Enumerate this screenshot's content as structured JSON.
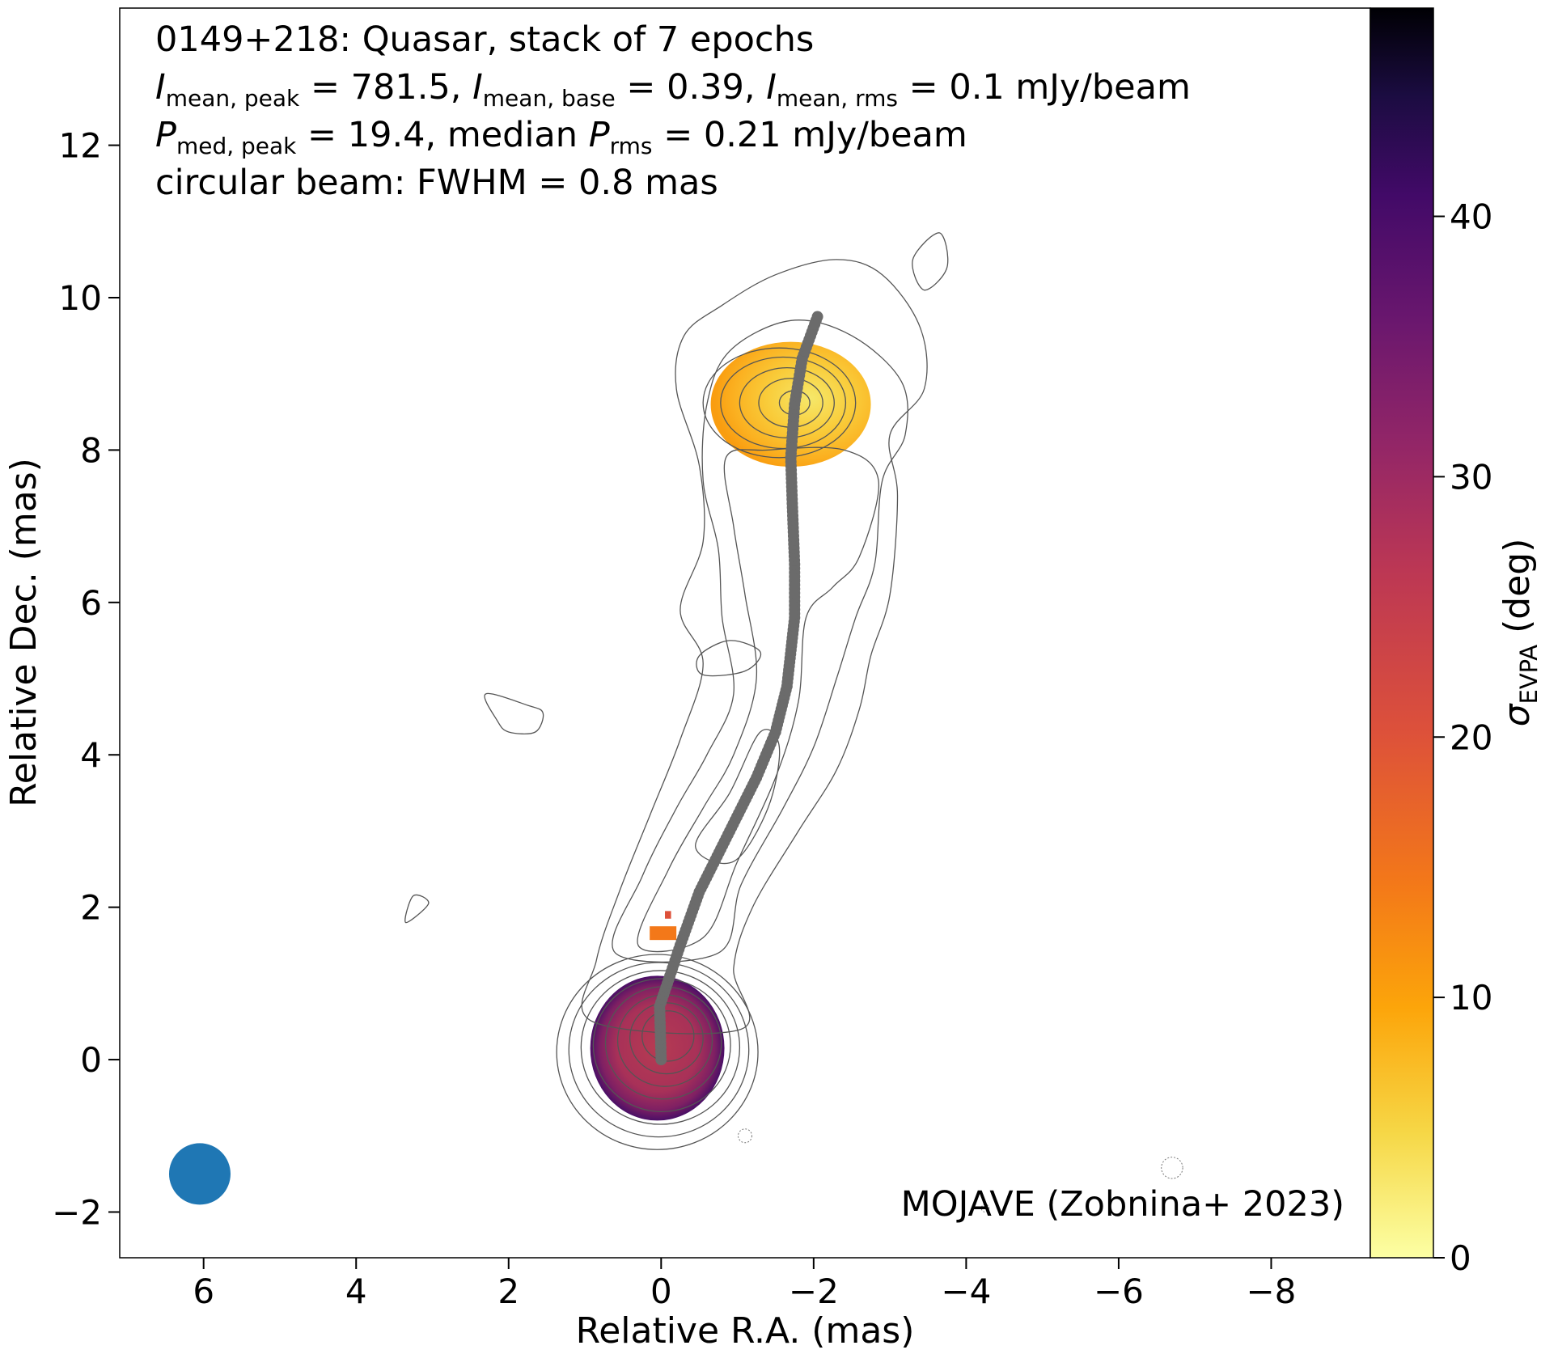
{
  "chart_data": {
    "type": "image",
    "xlabel": "Relative R.A. (mas)",
    "ylabel": "Relative Dec. (mas)",
    "xlim": [
      7.1,
      -9.3
    ],
    "ylim": [
      -2.6,
      13.8
    ],
    "x_ticks": [
      6,
      4,
      2,
      0,
      -2,
      -4,
      -6,
      -8
    ],
    "y_ticks": [
      -2,
      0,
      2,
      4,
      6,
      8,
      10,
      12
    ],
    "x_tick_labels": [
      "6",
      "4",
      "2",
      "0",
      "−2",
      "−4",
      "−6",
      "−8"
    ],
    "y_tick_labels": [
      "−2",
      "0",
      "2",
      "4",
      "6",
      "8",
      "10",
      "12"
    ],
    "title_lines": {
      "line1": "0149+218: Quasar, stack of 7 epochs",
      "line2": {
        "i_sym": "I",
        "sub_peak": "mean, peak",
        "val_peak": " = 781.5, ",
        "sub_base": "mean, base",
        "val_base": " = 0.39, ",
        "sub_rms": "mean, rms",
        "val_rms": " = 0.1 mJy/beam"
      },
      "line3": {
        "p_sym": "P",
        "sub_med": "med, peak",
        "mid": " = 19.4, median ",
        "sub_rms": "rms",
        "tail": " = 0.21 mJy/beam"
      },
      "line4": "circular beam: FWHM = 0.8 mas"
    },
    "credit": "MOJAVE (Zobnina+ 2023)",
    "colorbar": {
      "label_sym": "σ",
      "label_sub": "EVPA",
      "label_unit": " (deg)",
      "range": [
        0,
        48
      ],
      "ticks": [
        0,
        10,
        20,
        30,
        40
      ],
      "tick_labels": [
        "0",
        "10",
        "20",
        "30",
        "40"
      ],
      "colormap": "inferno_r"
    },
    "beam": {
      "x": 6.05,
      "y": -1.5,
      "fwhm_mas": 0.8,
      "color": "#1f77b4"
    },
    "ridgeline": {
      "color": "#6b6b6b",
      "points": [
        [
          0,
          0
        ],
        [
          0.02,
          0.7
        ],
        [
          -0.25,
          1.5
        ],
        [
          -0.5,
          2.2
        ],
        [
          -0.9,
          3.0
        ],
        [
          -1.25,
          3.7
        ],
        [
          -1.5,
          4.3
        ],
        [
          -1.65,
          4.9
        ],
        [
          -1.75,
          5.8
        ],
        [
          -1.75,
          6.5
        ],
        [
          -1.72,
          7.3
        ],
        [
          -1.7,
          7.9
        ],
        [
          -1.75,
          8.6
        ],
        [
          -1.85,
          9.2
        ],
        [
          -2.05,
          9.75
        ]
      ]
    },
    "polarization_regions": [
      {
        "name": "core",
        "cx": 0.05,
        "cy": 0.15,
        "rx": 0.88,
        "ry": 0.95,
        "sigma_center": 24,
        "sigma_edge": 35
      },
      {
        "name": "knot-north",
        "cx": -1.7,
        "cy": 8.6,
        "rx": 1.05,
        "ry": 0.82,
        "sigma_center": 6,
        "sigma_edge": 10
      }
    ]
  }
}
